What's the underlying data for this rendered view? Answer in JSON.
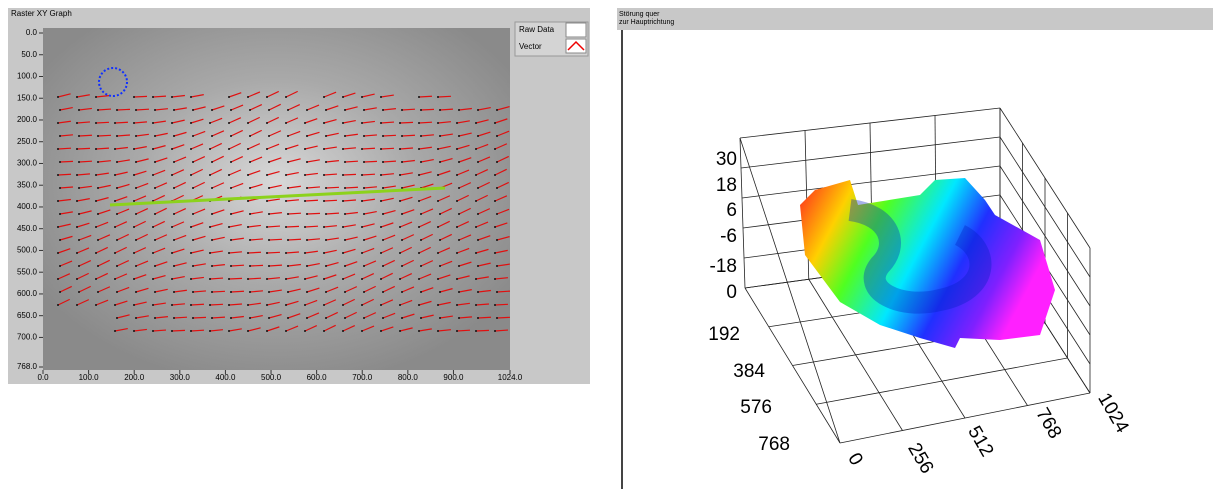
{
  "left_panel": {
    "title": "Raster XY Graph",
    "legend": [
      "Raw Data",
      "Vector"
    ],
    "xlim": [
      0,
      1024
    ],
    "ylim": [
      0,
      768
    ],
    "xticks": [
      {
        "value": 0,
        "label": "0.0"
      },
      {
        "value": 100,
        "label": "100.0"
      },
      {
        "value": 200,
        "label": "200.0"
      },
      {
        "value": 300,
        "label": "300.0"
      },
      {
        "value": 400,
        "label": "400.0"
      },
      {
        "value": 500,
        "label": "500.0"
      },
      {
        "value": 600,
        "label": "600.0"
      },
      {
        "value": 700,
        "label": "700.0"
      },
      {
        "value": 800,
        "label": "800.0"
      },
      {
        "value": 900,
        "label": "900.0"
      },
      {
        "value": 1024,
        "label": "1024.0"
      }
    ],
    "yticks": [
      {
        "value": 0,
        "label": "0.0"
      },
      {
        "value": 50,
        "label": "50.0"
      },
      {
        "value": 100,
        "label": "100.0"
      },
      {
        "value": 150,
        "label": "150.0"
      },
      {
        "value": 200,
        "label": "200.0"
      },
      {
        "value": 250,
        "label": "250.0"
      },
      {
        "value": 300,
        "label": "300.0"
      },
      {
        "value": 350,
        "label": "350.0"
      },
      {
        "value": 400,
        "label": "400.0"
      },
      {
        "value": 450,
        "label": "450.0"
      },
      {
        "value": 500,
        "label": "500.0"
      },
      {
        "value": 550,
        "label": "550.0"
      },
      {
        "value": 600,
        "label": "600.0"
      },
      {
        "value": 650,
        "label": "650.0"
      },
      {
        "value": 700,
        "label": "700.0"
      },
      {
        "value": 768,
        "label": "768.0"
      }
    ]
  },
  "right_panel": {
    "title_lines": [
      "Störung quer",
      "zur Hauptrichtung"
    ],
    "z_labels": [
      30,
      18,
      6,
      -6,
      -18,
      0
    ],
    "y_labels": [
      192,
      384,
      576,
      768
    ],
    "x_labels": [
      0,
      256,
      512,
      768,
      1024
    ]
  }
}
